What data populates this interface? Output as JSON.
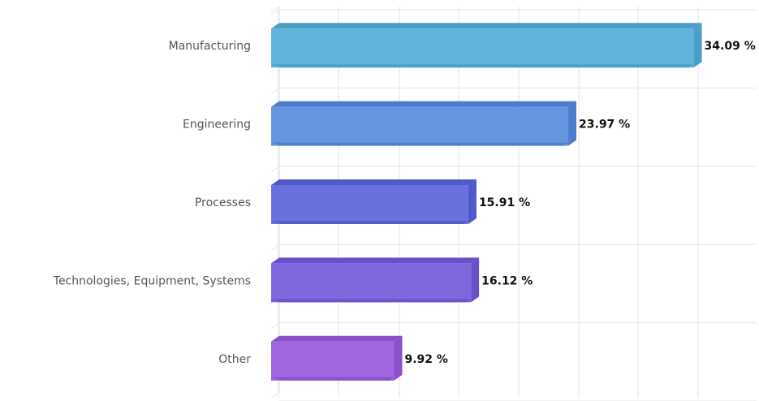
{
  "chart_data": {
    "type": "bar",
    "orientation": "horizontal",
    "style": "3d",
    "categories": [
      "Manufacturing",
      "Engineering",
      "Processes",
      "Technologies, Equipment, Systems",
      "Other"
    ],
    "values": [
      34.09,
      23.97,
      15.91,
      16.12,
      9.92
    ],
    "value_labels": [
      "34.09 %",
      "23.97 %",
      "15.91 %",
      "16.12 %",
      "9.92 %"
    ],
    "unit": "%",
    "colors": [
      "#63b4dc",
      "#6596df",
      "#6a71de",
      "#8067dd",
      "#a066dd"
    ],
    "side_colors": [
      "#4a9fc7",
      "#4d7ccf",
      "#5158c9",
      "#6a4fcb",
      "#8a4fc9"
    ],
    "title": "",
    "xlabel": "",
    "ylabel": "",
    "xlim": [
      0,
      40
    ],
    "grid": true,
    "legend": "none"
  }
}
